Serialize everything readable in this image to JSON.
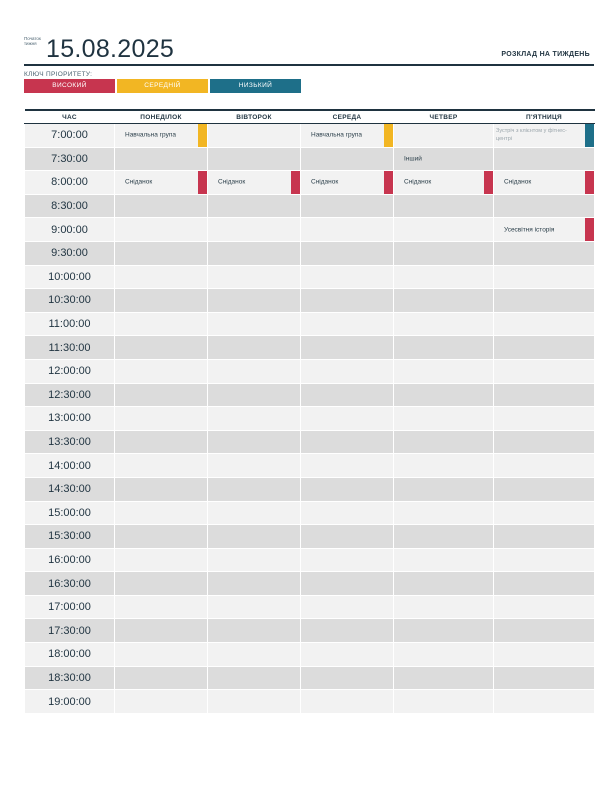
{
  "header": {
    "week_label": "Початок тижня",
    "date": "15.08.2025",
    "title": "РОЗКЛАД НА ТИЖДЕНЬ"
  },
  "priority_key": {
    "label": "КЛЮЧ ПРІОРИТЕТУ:",
    "items": [
      {
        "label": "ВИСОКИЙ",
        "color": "#c7354f"
      },
      {
        "label": "СЕРЕДНІЙ",
        "color": "#f2b623"
      },
      {
        "label": "НИЗЬКИЙ",
        "color": "#1e6f89"
      }
    ]
  },
  "columns": [
    "ЧАС",
    "ПОНЕДІЛОК",
    "ВІВТОРОК",
    "СЕРЕДА",
    "ЧЕТВЕР",
    "П'ЯТНИЦЯ"
  ],
  "times": [
    "7:00:00",
    "7:30:00",
    "8:00:00",
    "8:30:00",
    "9:00:00",
    "9:30:00",
    "10:00:00",
    "10:30:00",
    "11:00:00",
    "11:30:00",
    "12:00:00",
    "12:30:00",
    "13:00:00",
    "13:30:00",
    "14:00:00",
    "14:30:00",
    "15:00:00",
    "15:30:00",
    "16:00:00",
    "16:30:00",
    "17:00:00",
    "17:30:00",
    "18:00:00",
    "18:30:00",
    "19:00:00"
  ],
  "events": [
    {
      "row": 0,
      "day": 0,
      "text": "Навчальна група",
      "priority": "medium"
    },
    {
      "row": 0,
      "day": 2,
      "text": "Навчальна група",
      "priority": "medium"
    },
    {
      "row": 0,
      "day": 4,
      "text": "Зустріч з клієнтом у фітнес-центрі",
      "priority": "low",
      "faded": true
    },
    {
      "row": 1,
      "day": 3,
      "text": "Інший",
      "priority": ""
    },
    {
      "row": 2,
      "day": 0,
      "text": "Сніданок",
      "priority": "high"
    },
    {
      "row": 2,
      "day": 1,
      "text": "Сніданок",
      "priority": "high"
    },
    {
      "row": 2,
      "day": 2,
      "text": "Сніданок",
      "priority": "high"
    },
    {
      "row": 2,
      "day": 3,
      "text": "Сніданок",
      "priority": "high"
    },
    {
      "row": 2,
      "day": 4,
      "text": "Сніданок",
      "priority": "high"
    },
    {
      "row": 4,
      "day": 4,
      "text": "Усесвітня історія",
      "priority": "high"
    }
  ],
  "priority_colors": {
    "high": "#c7354f",
    "medium": "#f2b623",
    "low": "#1e6f89"
  }
}
